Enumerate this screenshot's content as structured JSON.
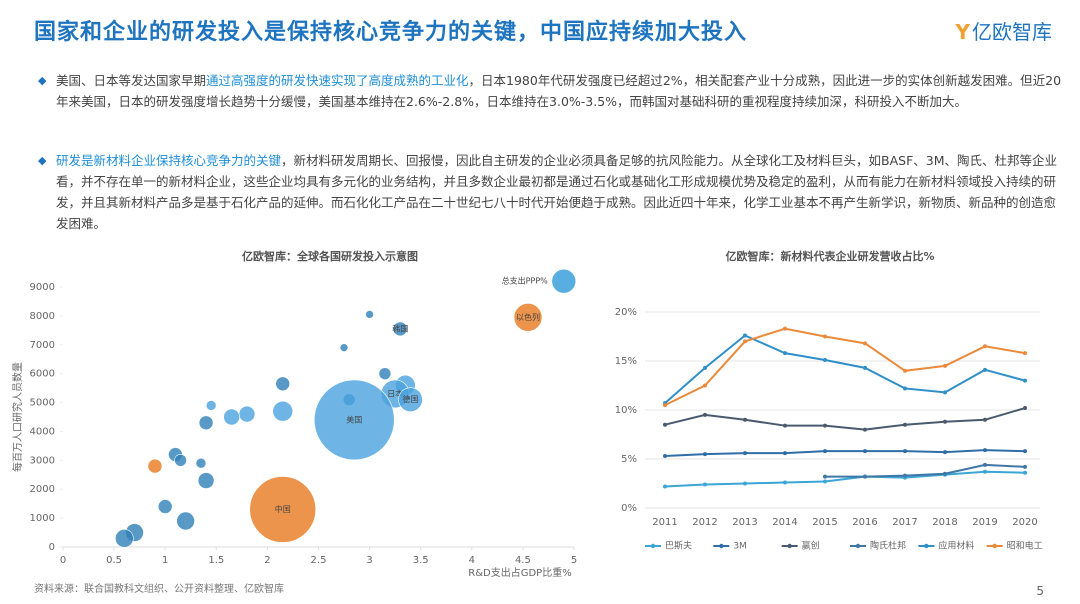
{
  "header": {
    "title": "国家和企业的研发投入是保持核心竞争力的关键，中国应持续加大投入",
    "logo": "亿欧智库"
  },
  "bullets": [
    {
      "segments": [
        {
          "text": "美国、日本等发达国家早期",
          "highlight": false
        },
        {
          "text": "通过高强度的研发快速实现了高度成熟的工业化",
          "highlight": true
        },
        {
          "text": "，日本1980年代研发强度已经超过2%，相关配套产业十分成熟，因此进一步的实体创新越发困难。但近20年来美国，日本的研发强度增长趋势十分缓慢，美国基本维持在2.6%-2.8%，日本维持在3.0%-3.5%，而韩国对基础科研的重视程度持续加深，科研投入不断加大。",
          "highlight": false
        }
      ]
    },
    {
      "segments": [
        {
          "text": "研发是新材料企业保持核心竞争力的关键",
          "highlight": true
        },
        {
          "text": "，新材料研发周期长、回报慢，因此自主研发的企业必须具备足够的抗风险能力。从全球化工及材料巨头，如BASF、3M、陶氏、杜邦等企业看，并不存在单一的新材料企业，这些企业均具有多元化的业务结构，并且多数企业最初都是通过石化或基础化工形成规模优势及稳定的盈利，从而有能力在新材料领域投入持续的研发，并且其新材料产品多是基于石化产品的延伸。而石化化工产品在二十世纪七八十时代开始便趋于成熟。因此近四十年来，化学工业基本不再产生新学识，新物质、新品种的创造愈发困难。",
          "highlight": false
        }
      ]
    }
  ],
  "chart_data": [
    {
      "type": "bubble",
      "title": "亿欧智库：全球各国研发投入示意图",
      "x_label": "R&D支出占GDP比重%",
      "y_label": "每百万人口研究人员数量",
      "x": [
        4.9,
        4.55,
        3.0,
        3.3,
        2.75,
        2.15,
        3.15,
        3.35,
        3.25,
        3.4,
        2.8,
        2.85,
        2.15,
        1.8,
        1.65,
        1.4,
        1.45,
        1.1,
        1.15,
        1.35,
        1.4,
        0.9,
        2.15,
        1.0,
        1.2,
        0.7,
        0.6
      ],
      "values": [
        9200,
        7950,
        8050,
        7550,
        6900,
        5650,
        6000,
        5600,
        5300,
        5100,
        5100,
        4400,
        4700,
        4600,
        4500,
        4300,
        4900,
        3200,
        3000,
        2900,
        2300,
        2800,
        1300,
        1400,
        900,
        500,
        300
      ],
      "sizes": [
        12,
        14,
        4,
        7,
        4,
        7,
        6,
        10,
        14,
        12,
        6,
        40,
        10,
        8,
        8,
        7,
        5,
        7,
        6,
        5,
        8,
        7,
        33,
        7,
        9,
        9,
        9
      ],
      "colors": [
        "#2e9ad8",
        "#e8791f",
        "#2e7fb8",
        "#2e7fb8",
        "#2e7fb8",
        "#2e7fb8",
        "#2e7fb8",
        "#4aa3e0",
        "#4aa3e0",
        "#4aa3e0",
        "#2e7fb8",
        "#4aa3e0",
        "#4aa3e0",
        "#4aa3e0",
        "#4aa3e0",
        "#2e7fb8",
        "#4aa3e0",
        "#2e7fb8",
        "#2e7fb8",
        "#2e7fb8",
        "#2e7fb8",
        "#e8791f",
        "#e8791f",
        "#2e7fb8",
        "#2e7fb8",
        "#2e7fb8",
        "#2e7fb8"
      ],
      "labels": [
        "总支出PPP%",
        "以色列",
        null,
        "韩国",
        null,
        null,
        null,
        null,
        "日本",
        "德国",
        null,
        "美国",
        null,
        null,
        null,
        null,
        null,
        null,
        null,
        null,
        null,
        null,
        "中国",
        null,
        null,
        null,
        null
      ],
      "xlim": [
        0,
        5
      ],
      "xticks": [
        0,
        0.5,
        1,
        1.5,
        2,
        2.5,
        3,
        3.5,
        4,
        4.5,
        5
      ],
      "ylim": [
        0,
        9000
      ],
      "yticks": [
        0,
        1000,
        2000,
        3000,
        4000,
        5000,
        6000,
        7000,
        8000,
        9000
      ]
    },
    {
      "type": "line",
      "title": "亿欧智库：新材料代表企业研发营收占比%",
      "categories": [
        "2011",
        "2012",
        "2013",
        "2014",
        "2015",
        "2016",
        "2017",
        "2018",
        "2019",
        "2020"
      ],
      "series": [
        {
          "name": "巴斯夫",
          "color": "#3aa6d6",
          "values": [
            2.2,
            2.4,
            2.5,
            2.6,
            2.7,
            3.2,
            3.1,
            3.4,
            3.7,
            3.6
          ]
        },
        {
          "name": "3M",
          "color": "#2f6ea8",
          "values": [
            5.3,
            5.5,
            5.6,
            5.6,
            5.8,
            5.8,
            5.8,
            5.7,
            5.9,
            5.8
          ]
        },
        {
          "name": "赢创",
          "color": "#4a5a6e",
          "values": [
            8.5,
            9.5,
            9.0,
            8.4,
            8.4,
            8.0,
            8.5,
            8.8,
            9.0,
            10.2
          ]
        },
        {
          "name": "陶氏杜邦",
          "color": "#3f77a8",
          "values": [
            null,
            null,
            null,
            null,
            3.2,
            3.2,
            3.3,
            3.5,
            4.4,
            4.2
          ]
        },
        {
          "name": "应用材料",
          "color": "#2f8fc8",
          "values": [
            10.7,
            14.3,
            17.6,
            15.8,
            15.1,
            14.3,
            12.2,
            11.8,
            14.1,
            13.0
          ]
        },
        {
          "name": "昭和电工",
          "color": "#ea8a3a",
          "values": [
            10.5,
            12.5,
            17.0,
            18.3,
            17.5,
            16.8,
            14.0,
            14.5,
            16.5,
            15.8
          ]
        }
      ],
      "ylim": [
        0,
        20
      ],
      "yticks": [
        {
          "value": 0,
          "label": "0%"
        },
        {
          "value": 5,
          "label": "5%"
        },
        {
          "value": 10,
          "label": "10%"
        },
        {
          "value": 15,
          "label": "15%"
        },
        {
          "value": 20,
          "label": "20%"
        }
      ],
      "grid": true
    }
  ],
  "source": "资料来源：联合国教科文组织、公开资料整理、亿欧智库",
  "page_number": 5
}
